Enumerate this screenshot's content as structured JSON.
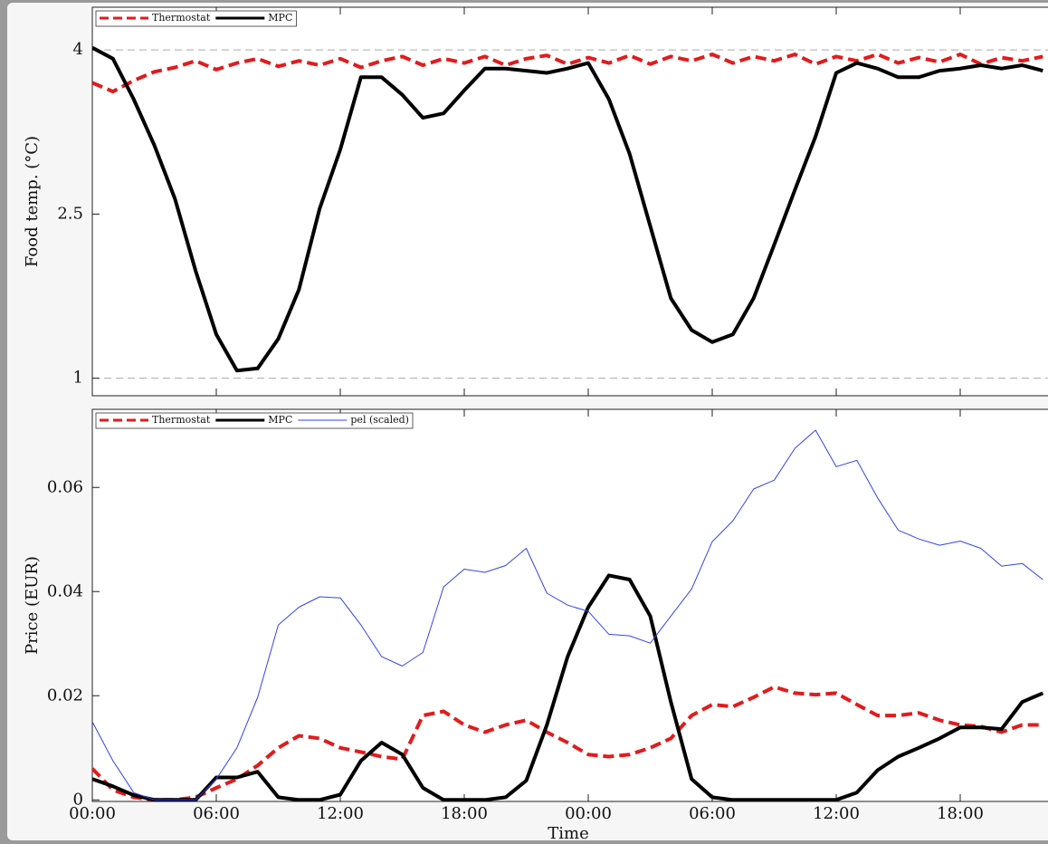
{
  "chart_data": [
    {
      "type": "line",
      "ylabel": "Food temp. (°C)",
      "legend": "upper left",
      "x": [
        0,
        1,
        2,
        3,
        4,
        5,
        6,
        7,
        8,
        9,
        10,
        11,
        12,
        13,
        14,
        15,
        16,
        17,
        18,
        19,
        20,
        21,
        22,
        23,
        24,
        25,
        26,
        27,
        28,
        29,
        30,
        31,
        32,
        33,
        34,
        35,
        36,
        37,
        38,
        39,
        40,
        41,
        42,
        43,
        44,
        45,
        46
      ],
      "xlim": [
        0,
        48
      ],
      "xticks": [
        0,
        6,
        12,
        18,
        24,
        30,
        36,
        42
      ],
      "ylim": [
        0.84,
        4.39
      ],
      "yticks": [
        1,
        2.5,
        4
      ],
      "hlines": [
        1,
        4
      ],
      "series": [
        {
          "name": "Thermostat",
          "color": "#e41a1c",
          "dash": true,
          "values": [
            3.7,
            3.62,
            3.72,
            3.8,
            3.84,
            3.9,
            3.82,
            3.88,
            3.92,
            3.85,
            3.9,
            3.86,
            3.92,
            3.84,
            3.9,
            3.94,
            3.86,
            3.92,
            3.88,
            3.94,
            3.86,
            3.92,
            3.95,
            3.87,
            3.93,
            3.88,
            3.95,
            3.87,
            3.94,
            3.9,
            3.96,
            3.88,
            3.94,
            3.9,
            3.96,
            3.87,
            3.94,
            3.9,
            3.96,
            3.88,
            3.93,
            3.89,
            3.96,
            3.87,
            3.93,
            3.9,
            3.94
          ]
        },
        {
          "name": "MPC",
          "color": "#000000",
          "values": [
            4.02,
            3.92,
            3.55,
            3.13,
            2.64,
            1.98,
            1.4,
            1.07,
            1.09,
            1.36,
            1.81,
            2.55,
            3.09,
            3.75,
            3.75,
            3.59,
            3.38,
            3.42,
            3.63,
            3.83,
            3.83,
            3.81,
            3.79,
            3.83,
            3.88,
            3.55,
            3.05,
            2.39,
            1.73,
            1.44,
            1.33,
            1.4,
            1.73,
            2.22,
            2.72,
            3.21,
            3.79,
            3.88,
            3.83,
            3.75,
            3.75,
            3.81,
            3.83,
            3.86,
            3.83,
            3.86,
            3.81
          ]
        }
      ]
    },
    {
      "type": "line",
      "ylabel": "Price (EUR)",
      "xlabel": "Time",
      "legend": "upper left",
      "x": [
        0,
        1,
        2,
        3,
        4,
        5,
        6,
        7,
        8,
        9,
        10,
        11,
        12,
        13,
        14,
        15,
        16,
        17,
        18,
        19,
        20,
        21,
        22,
        23,
        24,
        25,
        26,
        27,
        28,
        29,
        30,
        31,
        32,
        33,
        34,
        35,
        36,
        37,
        38,
        39,
        40,
        41,
        42,
        43,
        44,
        45,
        46
      ],
      "xlim": [
        0,
        48
      ],
      "xticks": [
        {
          "value": 0,
          "label": "00:00"
        },
        {
          "value": 6,
          "label": "06:00"
        },
        {
          "value": 12,
          "label": "12:00"
        },
        {
          "value": 18,
          "label": "18:00"
        },
        {
          "value": 24,
          "label": "00:00"
        },
        {
          "value": 30,
          "label": "06:00"
        },
        {
          "value": 36,
          "label": "12:00"
        },
        {
          "value": 42,
          "label": "18:00"
        }
      ],
      "ylim": [
        -0.0003,
        0.075
      ],
      "yticks": [
        0,
        0.02,
        0.04,
        0.06
      ],
      "series": [
        {
          "name": "Thermostat",
          "color": "#e41a1c",
          "dash": true,
          "values": [
            0.006,
            0.0019,
            0.0005,
            0,
            0,
            0.0005,
            0.0023,
            0.004,
            0.0066,
            0.01,
            0.0123,
            0.0118,
            0.01,
            0.0092,
            0.0083,
            0.0078,
            0.0162,
            0.017,
            0.0144,
            0.013,
            0.0144,
            0.0153,
            0.013,
            0.011,
            0.0087,
            0.0083,
            0.0087,
            0.01,
            0.0118,
            0.0162,
            0.0183,
            0.0179,
            0.0197,
            0.0217,
            0.0205,
            0.0202,
            0.0205,
            0.0183,
            0.0162,
            0.0162,
            0.0167,
            0.0153,
            0.0144,
            0.0141,
            0.013,
            0.0144,
            0.0144
          ]
        },
        {
          "name": "MPC",
          "color": "#000000",
          "values": [
            0.004,
            0.0026,
            0.0009,
            0,
            0,
            0,
            0.0043,
            0.0043,
            0.0054,
            0.0005,
            0,
            0,
            0.001,
            0.0075,
            0.011,
            0.0087,
            0.0023,
            0,
            0,
            0,
            0.0005,
            0.0037,
            0.0144,
            0.0275,
            0.037,
            0.0431,
            0.0423,
            0.0353,
            0.0188,
            0.004,
            0.0005,
            0,
            0,
            0,
            0,
            0,
            0,
            0.0014,
            0.0057,
            0.0083,
            0.01,
            0.0118,
            0.0139,
            0.0139,
            0.0136,
            0.0188,
            0.0205
          ]
        },
        {
          "name": "pel (scaled)",
          "color": "#3344ee",
          "thin": true,
          "values": [
            0.015,
            0.0075,
            0.0014,
            0,
            0,
            0,
            0.004,
            0.01,
            0.0197,
            0.0336,
            0.037,
            0.039,
            0.0388,
            0.0336,
            0.0275,
            0.0257,
            0.0283,
            0.0409,
            0.0443,
            0.0437,
            0.045,
            0.0483,
            0.0397,
            0.0374,
            0.0362,
            0.0318,
            0.0315,
            0.0301,
            0.0353,
            0.0405,
            0.0496,
            0.0536,
            0.0597,
            0.0614,
            0.0675,
            0.071,
            0.064,
            0.0652,
            0.058,
            0.0518,
            0.0501,
            0.0489,
            0.0497,
            0.0483,
            0.0449,
            0.0454,
            0.0423
          ]
        }
      ]
    }
  ]
}
